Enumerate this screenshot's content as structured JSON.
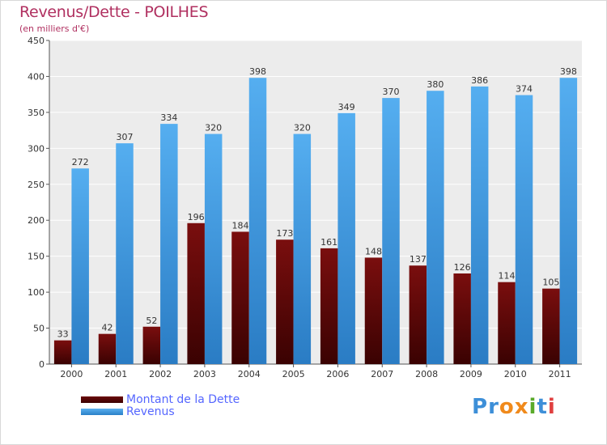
{
  "header": {
    "title": "Revenus/Dette - POILHES",
    "subtitle": "(en milliers d'€)"
  },
  "colors": {
    "debt": "#6b0a0a",
    "revenue": "#3d9ee5",
    "title": "#b03060",
    "legend_text": "#5566ff"
  },
  "chart_data": {
    "type": "bar",
    "title": "Revenus/Dette - POILHES",
    "subtitle": "(en milliers d'€)",
    "categories": [
      "2000",
      "2001",
      "2002",
      "2003",
      "2004",
      "2005",
      "2006",
      "2007",
      "2008",
      "2009",
      "2010",
      "2011"
    ],
    "series": [
      {
        "name": "Montant de la Dette",
        "values": [
          33,
          42,
          52,
          196,
          184,
          173,
          161,
          148,
          137,
          126,
          114,
          105
        ]
      },
      {
        "name": "Revenus",
        "values": [
          272,
          307,
          334,
          320,
          398,
          320,
          349,
          370,
          380,
          386,
          374,
          398
        ]
      }
    ],
    "ylim": [
      0,
      450
    ],
    "yticks": [
      0,
      50,
      100,
      150,
      200,
      250,
      300,
      350,
      400,
      450
    ],
    "grid": true,
    "legend": "bottom-left"
  },
  "legend": {
    "debt_label": "Montant de la Dette",
    "revenue_label": "Revenus"
  },
  "logo": {
    "letters": [
      "P",
      "r",
      "o",
      "x",
      "i",
      "t",
      "i"
    ],
    "colors": [
      "#3d8fd8",
      "#3d8fd8",
      "#f08a1c",
      "#f08a1c",
      "#5aaa2a",
      "#3d8fd8",
      "#e04040"
    ]
  }
}
